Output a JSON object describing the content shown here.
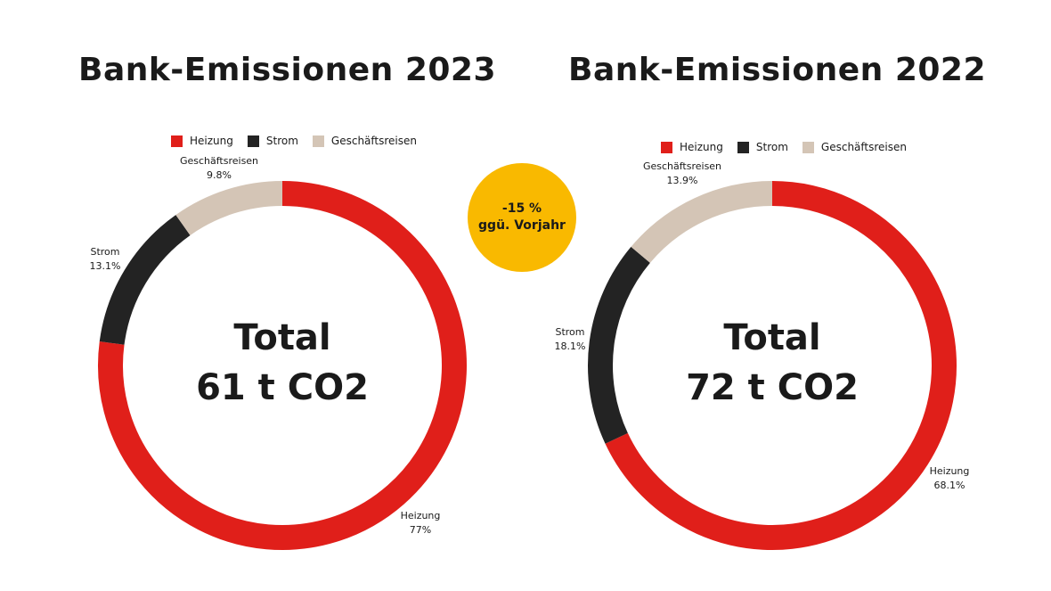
{
  "colors": {
    "heizung": "#e01f1a",
    "strom": "#232323",
    "geschaeftsreisen": "#d4c5b6",
    "badge": "#f9b900",
    "text": "#1a1a1a"
  },
  "badge": {
    "line1": "-15 %",
    "line2": "ggü. Vorjahr"
  },
  "chart_data": [
    {
      "type": "pie",
      "donut": true,
      "title": "Bank-Emissionen 2023",
      "center_label": [
        "Total",
        "61 t CO2"
      ],
      "legend": [
        "Heizung",
        "Strom",
        "Geschäftsreisen"
      ],
      "legend_position": "top",
      "categories": [
        "Heizung",
        "Strom",
        "Geschäftsreisen"
      ],
      "values": [
        77,
        13.1,
        9.8
      ],
      "value_labels": [
        "77%",
        "13.1%",
        "9.8%"
      ],
      "unit": "%"
    },
    {
      "type": "pie",
      "donut": true,
      "title": "Bank-Emissionen 2022",
      "center_label": [
        "Total",
        "72 t CO2"
      ],
      "legend": [
        "Heizung",
        "Strom",
        "Geschäftsreisen"
      ],
      "legend_position": "top",
      "categories": [
        "Heizung",
        "Strom",
        "Geschäftsreisen"
      ],
      "values": [
        68.1,
        18.1,
        13.9
      ],
      "value_labels": [
        "68.1%",
        "18.1%",
        "13.9%"
      ],
      "unit": "%"
    }
  ]
}
